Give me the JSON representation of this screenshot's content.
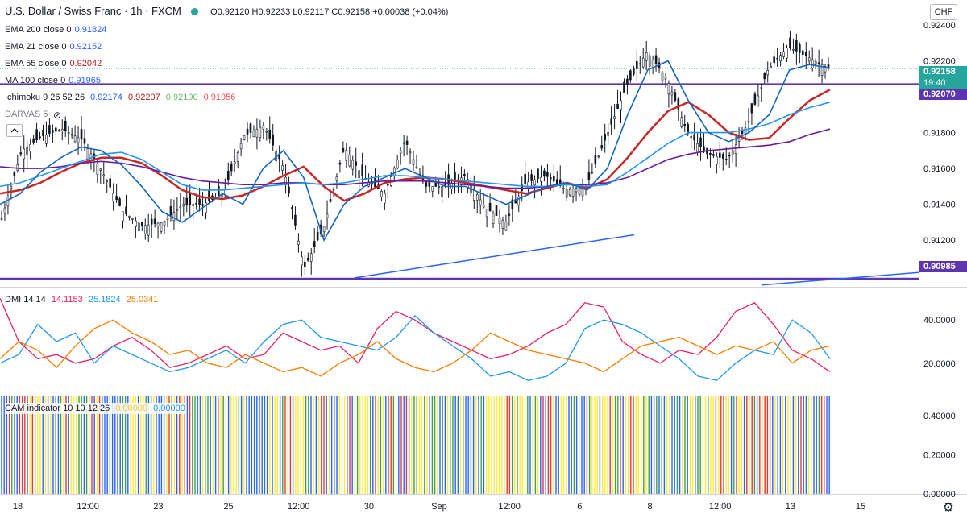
{
  "header": {
    "symbol": "U.S. Dollar / Swiss Franc · 1h · FXCM",
    "ohlc": "O0.92120 H0.92233 L0.92117 C0.92158 +0.00038 (+0.04%)",
    "currency": "CHF"
  },
  "indicators": [
    {
      "label": "EMA 200 close 0",
      "value": "0.91824",
      "color": "#2962ff"
    },
    {
      "label": "EMA 21 close 0",
      "value": "0.92152",
      "color": "#2962ff"
    },
    {
      "label": "EMA 55 close 0",
      "value": "0.92042",
      "color": "#b71c1c"
    },
    {
      "label": "MA 100 close 0",
      "value": "0.91965",
      "color": "#2962ff"
    }
  ],
  "ichimoku": {
    "label": "Ichimoku 9 26 52 26",
    "values": [
      "0.92174",
      "0.92207",
      "0.92190",
      "0.91956"
    ],
    "colors": [
      "#2962ff",
      "#b71c1c",
      "#66bb6a",
      "#ef5350"
    ]
  },
  "darvas": {
    "label": "DARVAS 5"
  },
  "price_tags": {
    "current": "0.92158",
    "countdown": "19:40",
    "upper_line": "0.92070",
    "lower_line": "0.90985"
  },
  "dmi": {
    "label": "DMI 14 14",
    "values": [
      "14.1153",
      "25.1824",
      "25.0341"
    ],
    "colors": [
      "#e91e63",
      "#2196f3",
      "#f57c00"
    ]
  },
  "cam": {
    "label": "CAM indicator 10 10 12 26",
    "values": [
      "0.00000",
      "0.00000"
    ],
    "colors": [
      "#ffeb3b",
      "#2196f3"
    ]
  },
  "chart_data": [
    {
      "type": "line",
      "title": "U.S. Dollar / Swiss Franc · 1h · FXCM",
      "x_labels": [
        "18",
        "12:00",
        "23",
        "25",
        "12:00",
        "30",
        "Sep",
        "12:00",
        "6",
        "8",
        "12:00",
        "13",
        "15"
      ],
      "y_ticks": [
        "0.92400",
        "0.92200",
        "0.92000",
        "0.91800",
        "0.91600",
        "0.91400",
        "0.91200"
      ],
      "ylim": [
        0.9094,
        0.9254
      ],
      "horizontal_lines": [
        0.9207,
        0.90985
      ],
      "series": [
        {
          "name": "EMA 55",
          "color": "#c62828",
          "values": [
            0.9146,
            0.9148,
            0.9152,
            0.9158,
            0.9163,
            0.9166,
            0.9166,
            0.9163,
            0.9156,
            0.9148,
            0.9144,
            0.9143,
            0.9145,
            0.915,
            0.9156,
            0.9161,
            0.915,
            0.9142,
            0.9146,
            0.9152,
            0.9154,
            0.9155,
            0.9154,
            0.9152,
            0.915,
            0.9148,
            0.9146,
            0.9149,
            0.9152,
            0.9149,
            0.9154,
            0.9166,
            0.918,
            0.9192,
            0.9197,
            0.919,
            0.918,
            0.9176,
            0.9177,
            0.9188,
            0.9198,
            0.9204
          ]
        },
        {
          "name": "EMA 200",
          "color": "#6a1b9a",
          "values": [
            0.9161,
            0.916,
            0.916,
            0.9161,
            0.9163,
            0.9164,
            0.9163,
            0.9161,
            0.9158,
            0.9155,
            0.9153,
            0.9152,
            0.9151,
            0.9151,
            0.9152,
            0.9152,
            0.9151,
            0.9151,
            0.9152,
            0.9153,
            0.9153,
            0.9153,
            0.9152,
            0.9151,
            0.915,
            0.9149,
            0.9149,
            0.915,
            0.9151,
            0.9151,
            0.9152,
            0.9155,
            0.916,
            0.9165,
            0.9168,
            0.917,
            0.9171,
            0.9172,
            0.9173,
            0.9175,
            0.9179,
            0.9182
          ]
        },
        {
          "name": "MA 100",
          "color": "#2196f3",
          "values": [
            0.915,
            0.9152,
            0.9156,
            0.916,
            0.9164,
            0.9168,
            0.9169,
            0.9165,
            0.9158,
            0.9151,
            0.9148,
            0.9148,
            0.9149,
            0.915,
            0.9151,
            0.9152,
            0.9151,
            0.9152,
            0.9154,
            0.9156,
            0.9156,
            0.9155,
            0.9154,
            0.9153,
            0.9152,
            0.9151,
            0.915,
            0.915,
            0.9151,
            0.915,
            0.9151,
            0.9158,
            0.9166,
            0.9174,
            0.918,
            0.918,
            0.918,
            0.9182,
            0.9185,
            0.919,
            0.9194,
            0.9197
          ]
        },
        {
          "name": "EMA 21",
          "color": "#1565c0",
          "values": [
            0.914,
            0.9146,
            0.9158,
            0.9166,
            0.9172,
            0.917,
            0.9162,
            0.915,
            0.9136,
            0.913,
            0.9138,
            0.9146,
            0.914,
            0.916,
            0.917,
            0.9155,
            0.912,
            0.914,
            0.915,
            0.9155,
            0.916,
            0.9155,
            0.915,
            0.915,
            0.9145,
            0.914,
            0.9145,
            0.915,
            0.9152,
            0.9148,
            0.916,
            0.919,
            0.9215,
            0.922,
            0.9198,
            0.918,
            0.9175,
            0.918,
            0.919,
            0.9215,
            0.9218,
            0.9216
          ]
        },
        {
          "name": "Close",
          "color": "#131722",
          "values": [
            0.9132,
            0.917,
            0.9178,
            0.9182,
            0.9176,
            0.9158,
            0.9136,
            0.9128,
            0.913,
            0.914,
            0.914,
            0.9146,
            0.9178,
            0.9184,
            0.916,
            0.9104,
            0.9128,
            0.9172,
            0.9154,
            0.9146,
            0.9176,
            0.915,
            0.915,
            0.9156,
            0.9138,
            0.913,
            0.9152,
            0.9156,
            0.9148,
            0.915,
            0.9178,
            0.9206,
            0.9225,
            0.921,
            0.918,
            0.9168,
            0.9165,
            0.9185,
            0.9215,
            0.9228,
            0.9222,
            0.9216
          ]
        }
      ]
    },
    {
      "type": "line",
      "title": "DMI 14 14",
      "y_ticks": [
        "40.0000",
        "20.0000"
      ],
      "ylim": [
        5,
        55
      ],
      "series": [
        {
          "name": "",
          "color": "#e91e63",
          "values": [
            50,
            30,
            22,
            24,
            20,
            22,
            28,
            32,
            26,
            18,
            20,
            24,
            28,
            22,
            24,
            34,
            30,
            26,
            28,
            20,
            36,
            44,
            40,
            34,
            30,
            26,
            22,
            24,
            28,
            34,
            38,
            48,
            46,
            30,
            24,
            20,
            26,
            24,
            32,
            44,
            48,
            38,
            26,
            22,
            16
          ]
        },
        {
          "name": "",
          "color": "#2196f3",
          "values": [
            20,
            24,
            38,
            30,
            34,
            20,
            28,
            24,
            20,
            16,
            18,
            22,
            26,
            20,
            30,
            38,
            40,
            32,
            30,
            28,
            26,
            32,
            42,
            34,
            28,
            22,
            14,
            16,
            12,
            14,
            20,
            36,
            40,
            38,
            34,
            28,
            22,
            14,
            12,
            20,
            26,
            24,
            40,
            34,
            22
          ]
        },
        {
          "name": "",
          "color": "#f57c00",
          "values": [
            22,
            30,
            26,
            18,
            28,
            36,
            40,
            34,
            30,
            24,
            26,
            20,
            18,
            24,
            20,
            16,
            18,
            14,
            20,
            24,
            30,
            22,
            18,
            16,
            20,
            26,
            34,
            30,
            26,
            24,
            22,
            20,
            16,
            22,
            28,
            30,
            32,
            28,
            24,
            28,
            26,
            30,
            20,
            26,
            28
          ]
        }
      ]
    },
    {
      "type": "bar",
      "title": "CAM indicator 10 10 12 26",
      "y_ticks": [
        "0.40000",
        "0.20000",
        "0.00000"
      ],
      "ylim": [
        0,
        0.5
      ]
    }
  ]
}
